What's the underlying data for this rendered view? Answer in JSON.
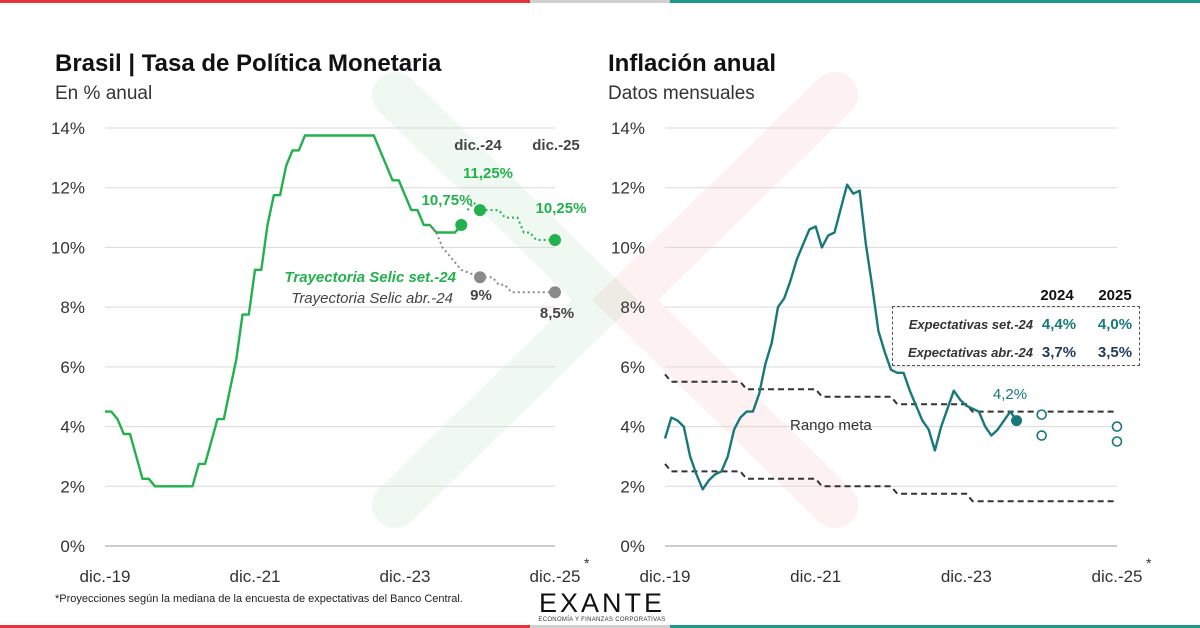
{
  "colors": {
    "green": "#22b14c",
    "teal": "#18787a",
    "gray": "#8a8a8a",
    "navy": "#1f3b5a",
    "red": "#e8323a"
  },
  "left": {
    "title": "Brasil | Tasa de Política Monetaria",
    "subtitle": "En % anual",
    "labels": {
      "dic24": "dic.-24",
      "dic25": "dic.-25",
      "v1075": "10,75%",
      "v1125": "11,25%",
      "v1025": "10,25%",
      "v9": "9%",
      "v85": "8,5%",
      "sept": "Trayectoria Selic set.-24",
      "abr": "Trayectoria Selic abr.-24"
    }
  },
  "right": {
    "title": "Inflación anual",
    "subtitle": "Datos mensuales",
    "labels": {
      "last": "4,2%",
      "rango": "Rango meta"
    },
    "table": {
      "h2024": "2024",
      "h2025": "2025",
      "r1": {
        "label": "Expectativas set.-24",
        "v2024": "4,4%",
        "v2025": "4,0%"
      },
      "r2": {
        "label": "Expectativas abr.-24",
        "v2024": "3,7%",
        "v2025": "3,5%"
      }
    }
  },
  "footnote": "*Proyecciones según la mediana de la encuesta de expectativas del Banco Central.",
  "logo": {
    "name": "EXANTE",
    "tagline": "ECONOMÍA Y FINANZAS CORPORATIVAS"
  },
  "asterisk": "*",
  "chart_data": [
    {
      "type": "line",
      "title": "Brasil | Tasa de Política Monetaria",
      "subtitle": "En % anual",
      "ylim": [
        0,
        14
      ],
      "y_ticks": [
        "0%",
        "2%",
        "4%",
        "6%",
        "8%",
        "10%",
        "12%",
        "14%"
      ],
      "x_ticks": [
        "dic.-19",
        "dic.-21",
        "dic.-23",
        "dic.-25"
      ],
      "grid": true,
      "series": [
        {
          "name": "Selic",
          "color": "#22b14c",
          "points": [
            [
              "2019-12",
              4.5
            ],
            [
              "2020-01",
              4.5
            ],
            [
              "2020-02",
              4.25
            ],
            [
              "2020-03",
              3.75
            ],
            [
              "2020-04",
              3.75
            ],
            [
              "2020-05",
              3.0
            ],
            [
              "2020-06",
              2.25
            ],
            [
              "2020-07",
              2.25
            ],
            [
              "2020-08",
              2.0
            ],
            [
              "2020-09",
              2.0
            ],
            [
              "2020-10",
              2.0
            ],
            [
              "2020-11",
              2.0
            ],
            [
              "2020-12",
              2.0
            ],
            [
              "2021-01",
              2.0
            ],
            [
              "2021-02",
              2.0
            ],
            [
              "2021-03",
              2.75
            ],
            [
              "2021-04",
              2.75
            ],
            [
              "2021-05",
              3.5
            ],
            [
              "2021-06",
              4.25
            ],
            [
              "2021-07",
              4.25
            ],
            [
              "2021-08",
              5.25
            ],
            [
              "2021-09",
              6.25
            ],
            [
              "2021-10",
              7.75
            ],
            [
              "2021-11",
              7.75
            ],
            [
              "2021-12",
              9.25
            ],
            [
              "2022-01",
              9.25
            ],
            [
              "2022-02",
              10.75
            ],
            [
              "2022-03",
              11.75
            ],
            [
              "2022-04",
              11.75
            ],
            [
              "2022-05",
              12.75
            ],
            [
              "2022-06",
              13.25
            ],
            [
              "2022-07",
              13.25
            ],
            [
              "2022-08",
              13.75
            ],
            [
              "2022-09",
              13.75
            ],
            [
              "2022-10",
              13.75
            ],
            [
              "2022-11",
              13.75
            ],
            [
              "2022-12",
              13.75
            ],
            [
              "2023-01",
              13.75
            ],
            [
              "2023-02",
              13.75
            ],
            [
              "2023-03",
              13.75
            ],
            [
              "2023-04",
              13.75
            ],
            [
              "2023-05",
              13.75
            ],
            [
              "2023-06",
              13.75
            ],
            [
              "2023-07",
              13.75
            ],
            [
              "2023-08",
              13.25
            ],
            [
              "2023-09",
              12.75
            ],
            [
              "2023-10",
              12.25
            ],
            [
              "2023-11",
              12.25
            ],
            [
              "2023-12",
              11.75
            ],
            [
              "2024-01",
              11.25
            ],
            [
              "2024-02",
              11.25
            ],
            [
              "2024-03",
              10.75
            ],
            [
              "2024-04",
              10.75
            ],
            [
              "2024-05",
              10.5
            ],
            [
              "2024-06",
              10.5
            ],
            [
              "2024-07",
              10.5
            ],
            [
              "2024-08",
              10.5
            ],
            [
              "2024-09",
              10.75
            ]
          ]
        },
        {
          "name": "Trayectoria Selic set.-24",
          "color": "#22b14c",
          "points": [
            [
              "2024-10",
              11.25
            ],
            [
              "2024-11",
              11.5
            ],
            [
              "2024-12",
              11.25
            ],
            [
              "2025-01",
              11.25
            ],
            [
              "2025-03",
              11.25
            ],
            [
              "2025-04",
              11.0
            ],
            [
              "2025-06",
              11.0
            ],
            [
              "2025-07",
              10.5
            ],
            [
              "2025-08",
              10.5
            ],
            [
              "2025-09",
              10.25
            ],
            [
              "2025-12",
              10.25
            ]
          ]
        },
        {
          "name": "Trayectoria Selic abr.-24",
          "color": "#8a8a8a",
          "points": [
            [
              "2024-04",
              10.75
            ],
            [
              "2024-05",
              10.5
            ],
            [
              "2024-06",
              10.0
            ],
            [
              "2024-07",
              9.75
            ],
            [
              "2024-08",
              9.5
            ],
            [
              "2024-09",
              9.25
            ],
            [
              "2024-12",
              9.0
            ],
            [
              "2025-02",
              9.0
            ],
            [
              "2025-03",
              8.75
            ],
            [
              "2025-04",
              8.75
            ],
            [
              "2025-05",
              8.5
            ],
            [
              "2025-12",
              8.5
            ]
          ]
        }
      ],
      "markers": [
        {
          "label": "10,75%",
          "date": "2024-09",
          "value": 10.75,
          "color": "#22b14c"
        },
        {
          "label": "11,25%",
          "date": "2024-12",
          "value": 11.25,
          "color": "#22b14c"
        },
        {
          "label": "10,25%",
          "date": "2025-12",
          "value": 10.25,
          "color": "#22b14c"
        },
        {
          "label": "9%",
          "date": "2024-12",
          "value": 9.0,
          "color": "#8a8a8a"
        },
        {
          "label": "8,5%",
          "date": "2025-12",
          "value": 8.5,
          "color": "#8a8a8a"
        }
      ]
    },
    {
      "type": "line",
      "title": "Inflación anual",
      "subtitle": "Datos mensuales",
      "ylim": [
        0,
        14
      ],
      "y_ticks": [
        "0%",
        "2%",
        "4%",
        "6%",
        "8%",
        "10%",
        "12%",
        "14%"
      ],
      "x_ticks": [
        "dic.-19",
        "dic.-21",
        "dic.-23",
        "dic.-25"
      ],
      "grid": true,
      "series": [
        {
          "name": "Inflación anual",
          "color": "#18787a",
          "points": [
            [
              "2019-12",
              3.6
            ],
            [
              "2020-01",
              4.3
            ],
            [
              "2020-02",
              4.2
            ],
            [
              "2020-03",
              4.0
            ],
            [
              "2020-04",
              3.0
            ],
            [
              "2020-05",
              2.4
            ],
            [
              "2020-06",
              1.9
            ],
            [
              "2020-07",
              2.2
            ],
            [
              "2020-08",
              2.4
            ],
            [
              "2020-09",
              2.5
            ],
            [
              "2020-10",
              3.0
            ],
            [
              "2020-11",
              3.9
            ],
            [
              "2020-12",
              4.3
            ],
            [
              "2021-01",
              4.5
            ],
            [
              "2021-02",
              4.5
            ],
            [
              "2021-03",
              5.1
            ],
            [
              "2021-04",
              6.1
            ],
            [
              "2021-05",
              6.8
            ],
            [
              "2021-06",
              8.0
            ],
            [
              "2021-07",
              8.3
            ],
            [
              "2021-08",
              8.9
            ],
            [
              "2021-09",
              9.6
            ],
            [
              "2021-10",
              10.1
            ],
            [
              "2021-11",
              10.6
            ],
            [
              "2021-12",
              10.7
            ],
            [
              "2022-01",
              10.0
            ],
            [
              "2022-02",
              10.4
            ],
            [
              "2022-03",
              10.5
            ],
            [
              "2022-04",
              11.3
            ],
            [
              "2022-05",
              12.1
            ],
            [
              "2022-06",
              11.8
            ],
            [
              "2022-07",
              11.9
            ],
            [
              "2022-08",
              10.1
            ],
            [
              "2022-09",
              8.7
            ],
            [
              "2022-10",
              7.2
            ],
            [
              "2022-11",
              6.5
            ],
            [
              "2022-12",
              5.9
            ],
            [
              "2023-01",
              5.8
            ],
            [
              "2023-02",
              5.8
            ],
            [
              "2023-03",
              5.2
            ],
            [
              "2023-04",
              4.7
            ],
            [
              "2023-05",
              4.2
            ],
            [
              "2023-06",
              3.9
            ],
            [
              "2023-07",
              3.2
            ],
            [
              "2023-08",
              4.0
            ],
            [
              "2023-09",
              4.6
            ],
            [
              "2023-10",
              5.2
            ],
            [
              "2023-11",
              4.9
            ],
            [
              "2023-12",
              4.7
            ],
            [
              "2024-01",
              4.6
            ],
            [
              "2024-02",
              4.5
            ],
            [
              "2024-03",
              4.0
            ],
            [
              "2024-04",
              3.7
            ],
            [
              "2024-05",
              3.9
            ],
            [
              "2024-06",
              4.2
            ],
            [
              "2024-07",
              4.5
            ],
            [
              "2024-08",
              4.2
            ]
          ]
        },
        {
          "name": "Rango meta (superior)",
          "color": "#333333",
          "points": [
            [
              "2019-12",
              5.75
            ],
            [
              "2020-01",
              5.5
            ],
            [
              "2020-12",
              5.5
            ],
            [
              "2021-01",
              5.25
            ],
            [
              "2021-12",
              5.25
            ],
            [
              "2022-01",
              5.0
            ],
            [
              "2022-12",
              5.0
            ],
            [
              "2023-01",
              4.75
            ],
            [
              "2023-12",
              4.75
            ],
            [
              "2024-01",
              4.5
            ],
            [
              "2025-12",
              4.5
            ]
          ]
        },
        {
          "name": "Rango meta (inferior)",
          "color": "#333333",
          "points": [
            [
              "2019-12",
              2.75
            ],
            [
              "2020-01",
              2.5
            ],
            [
              "2020-12",
              2.5
            ],
            [
              "2021-01",
              2.25
            ],
            [
              "2021-12",
              2.25
            ],
            [
              "2022-01",
              2.0
            ],
            [
              "2022-12",
              2.0
            ],
            [
              "2023-01",
              1.75
            ],
            [
              "2023-12",
              1.75
            ],
            [
              "2024-01",
              1.5
            ],
            [
              "2025-12",
              1.5
            ]
          ]
        }
      ],
      "markers": [
        {
          "label": "4,2%",
          "date": "2024-08",
          "value": 4.2,
          "filled": true
        },
        {
          "label": "Expectativas set.-24 2024",
          "date": "2024-12",
          "value": 4.4,
          "filled": false
        },
        {
          "label": "Expectativas abr.-24 2024",
          "date": "2024-12",
          "value": 3.7,
          "filled": false
        },
        {
          "label": "Expectativas set.-24 2025",
          "date": "2025-12",
          "value": 4.0,
          "filled": false
        },
        {
          "label": "Expectativas abr.-24 2025",
          "date": "2025-12",
          "value": 3.5,
          "filled": false
        }
      ]
    }
  ]
}
